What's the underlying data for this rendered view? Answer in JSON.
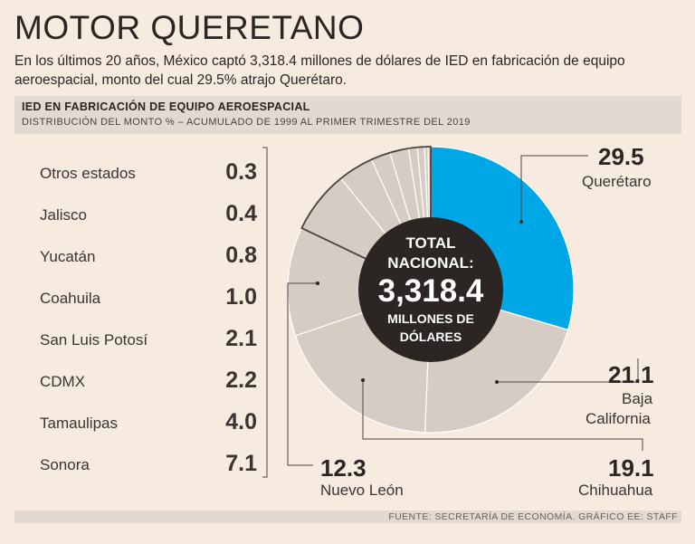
{
  "header": {
    "title": "MOTOR QUERETANO",
    "subtitle": "En los últimos 20 años, México captó 3,318.4 millones de dólares de IED en fabricación de equipo aeroespacial, monto del cual 29.5% atrajo Querétaro."
  },
  "band": {
    "title": "IED EN FABRICACIÓN DE EQUIPO AEROESPACIAL",
    "subtitle": "DISTRIBUCIÓN DEL MONTO % – ACUMULADO DE 1999 AL PRIMER TRIMESTRE DEL 2019"
  },
  "center": {
    "line1": "TOTAL",
    "line2": "NACIONAL:",
    "amount": "3,318.4",
    "line4": "MILLONES DE",
    "line5": "DÓLARES"
  },
  "footer": {
    "source": "FUENTE: SECRETARÍA DE ECONOMÍA.  GRÁFICO EE: STAFF"
  },
  "colors": {
    "highlight": "#00a7e6",
    "base": "#d6ccc3",
    "center": "#2b2623",
    "background": "#f7ebdf"
  },
  "chart_data": {
    "type": "pie",
    "title": "IED EN FABRICACIÓN DE EQUIPO AEROESPACIAL",
    "subtitle": "DISTRIBUCIÓN DEL MONTO % – ACUMULADO DE 1999 AL PRIMER TRIMESTRE DEL 2019",
    "unit": "%",
    "slices": [
      {
        "label": "Querétaro",
        "value": 29.5,
        "display": "29.5",
        "highlight": true
      },
      {
        "label": "Baja California",
        "label_lines": [
          "Baja",
          "California"
        ],
        "value": 21.1,
        "display": "21.1"
      },
      {
        "label": "Chihuahua",
        "value": 19.1,
        "display": "19.1"
      },
      {
        "label": "Nuevo León",
        "value": 12.3,
        "display": "12.3"
      },
      {
        "label": "Sonora",
        "value": 7.1,
        "display": "7.1"
      },
      {
        "label": "Tamaulipas",
        "value": 4.0,
        "display": "4.0"
      },
      {
        "label": "CDMX",
        "value": 2.2,
        "display": "2.2"
      },
      {
        "label": "San Luis Potosí",
        "value": 2.1,
        "display": "2.1"
      },
      {
        "label": "Coahuila",
        "value": 1.0,
        "display": "1.0"
      },
      {
        "label": "Yucatán",
        "value": 0.8,
        "display": "0.8"
      },
      {
        "label": "Jalisco",
        "value": 0.4,
        "display": "0.4"
      },
      {
        "label": "Otros estados",
        "value": 0.3,
        "display": "0.3"
      }
    ],
    "side_list": [
      "Otros estados",
      "Jalisco",
      "Yucatán",
      "Coahuila",
      "San Luis Potosí",
      "CDMX",
      "Tamaulipas",
      "Sonora"
    ]
  }
}
